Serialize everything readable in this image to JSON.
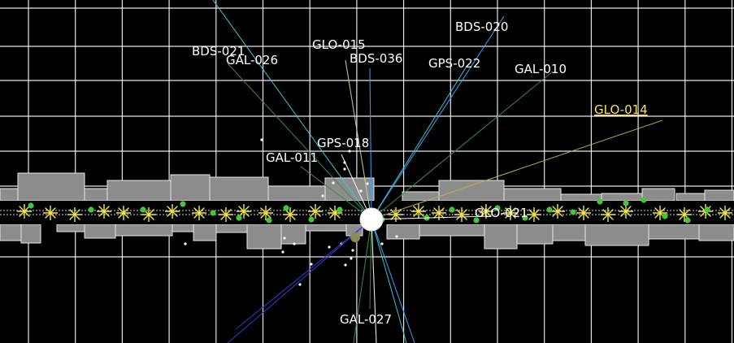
{
  "colors": {
    "background": "#000000",
    "grid": "#ffffff",
    "label": "#ffffff",
    "selected": "#ffe24a",
    "terrain_fill": "#8c8c8c",
    "terrain_stroke": "#e6e6e6",
    "star": "#f0e84a",
    "dot": "#46c43c",
    "sun": "#ffffff",
    "moon": "#8a8a5a"
  },
  "satellites": [
    {
      "id": "BDS-020",
      "label": "BDS-020",
      "color": "#3aa6ff",
      "selected": false
    },
    {
      "id": "BDS-021",
      "label": "BDS-021",
      "color": "#40c8d0",
      "selected": false
    },
    {
      "id": "GAL-026",
      "label": "GAL-026",
      "color": "#3c8c50",
      "selected": false
    },
    {
      "id": "GLO-015",
      "label": "GLO-015",
      "color": "#d0d0a0",
      "selected": false
    },
    {
      "id": "BDS-036",
      "label": "BDS-036",
      "color": "#3aa6ff",
      "selected": false
    },
    {
      "id": "GPS-022",
      "label": "GPS-022",
      "color": "#40c8d0",
      "selected": false
    },
    {
      "id": "GAL-010",
      "label": "GAL-010",
      "color": "#3c8c50",
      "selected": false
    },
    {
      "id": "GLO-014",
      "label": "GLO-014",
      "color": "#b8b050",
      "selected": true
    },
    {
      "id": "GPS-018",
      "label": "GPS-018",
      "color": "#ffffff",
      "selected": false
    },
    {
      "id": "GAL-011",
      "label": "GAL-011",
      "color": "#3c8c50",
      "selected": false
    },
    {
      "id": "GLO-021",
      "label": "GLO-021",
      "color": "#ffffff",
      "selected": false
    },
    {
      "id": "GAL-027",
      "label": "GAL-027",
      "color": "#3c8c50",
      "selected": false
    }
  ]
}
